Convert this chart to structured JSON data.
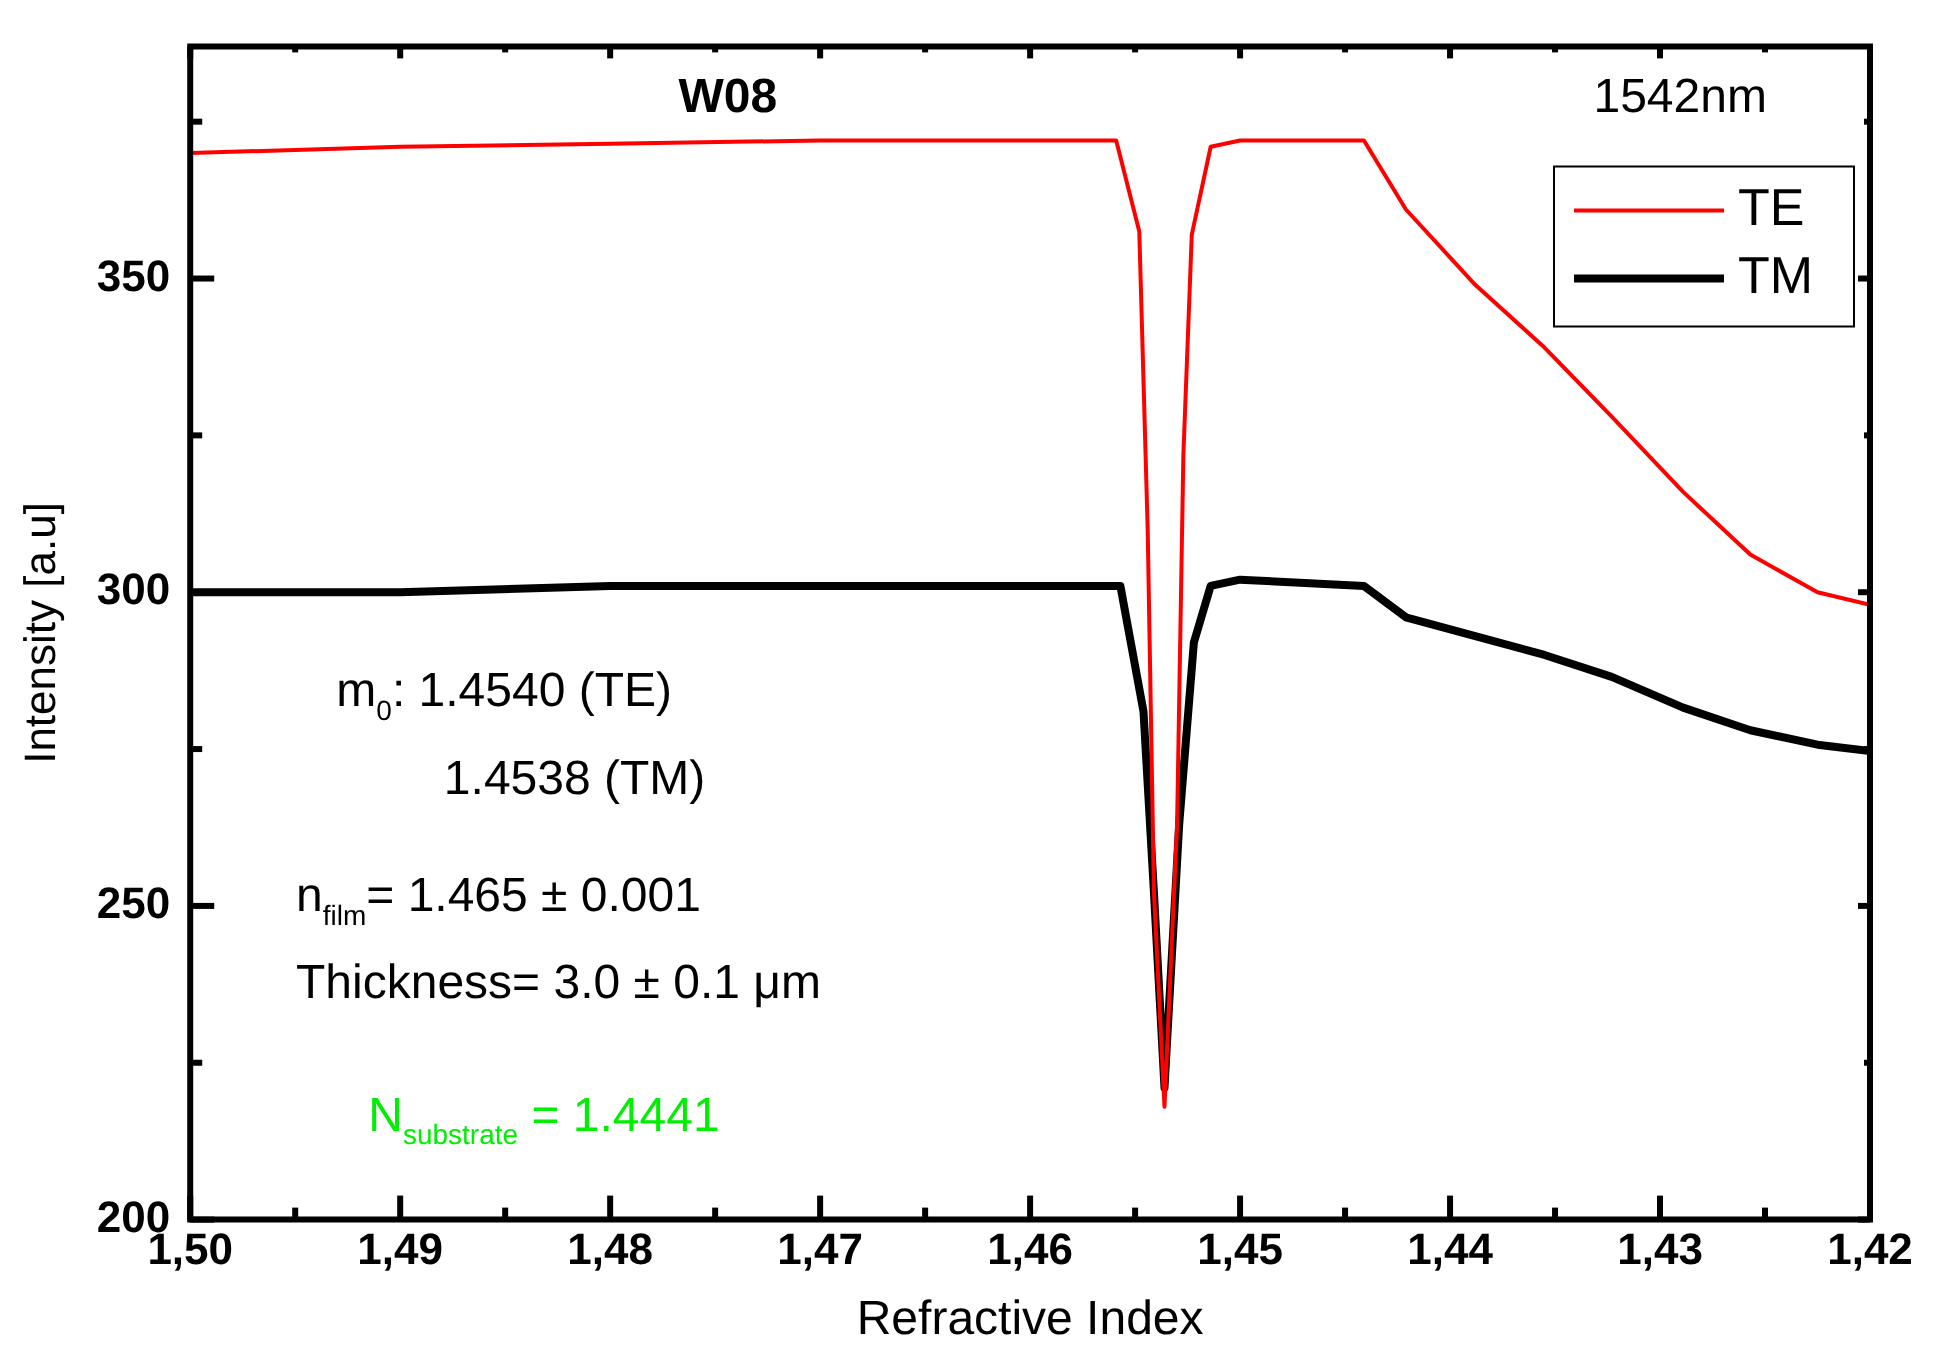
{
  "chart_data": {
    "type": "line",
    "title": "W08",
    "xlabel": "Refractive Index",
    "ylabel": "Intensity [a.u]",
    "annotations": [
      "1542nm",
      "m$_{0}$: 1.4540 (TE)",
      "1.4538 (TM)",
      "n$_{film}$= 1.465 ± 0.001",
      "Thickness= 3.0 ± 0.1 μm",
      "N$_{substrate}$ = 1.4441"
    ],
    "xlim": [
      1.5,
      1.42
    ],
    "ylim": [
      200,
      387
    ],
    "xticks": [
      {
        "value": 1.5,
        "label": "1,50"
      },
      {
        "value": 1.495,
        "label": null
      },
      {
        "value": 1.49,
        "label": "1,49"
      },
      {
        "value": 1.485,
        "label": null
      },
      {
        "value": 1.48,
        "label": "1,48"
      },
      {
        "value": 1.475,
        "label": null
      },
      {
        "value": 1.47,
        "label": "1,47"
      },
      {
        "value": 1.465,
        "label": null
      },
      {
        "value": 1.46,
        "label": "1,46"
      },
      {
        "value": 1.455,
        "label": null
      },
      {
        "value": 1.45,
        "label": "1,45"
      },
      {
        "value": 1.445,
        "label": null
      },
      {
        "value": 1.44,
        "label": "1,44"
      },
      {
        "value": 1.435,
        "label": null
      },
      {
        "value": 1.43,
        "label": "1,43"
      },
      {
        "value": 1.425,
        "label": null
      },
      {
        "value": 1.42,
        "label": "1,42"
      }
    ],
    "yticks": [
      200,
      {
        "value": 225,
        "label": null
      },
      250,
      {
        "value": 275,
        "label": null
      },
      300,
      {
        "value": 325,
        "label": null
      },
      350,
      {
        "value": 375,
        "label": null
      }
    ],
    "grid": false,
    "legend": "top right",
    "marker": "none",
    "line_style": "solid",
    "series": [
      {
        "name": "TE",
        "color": "#ff0000",
        "x": [
          1.5,
          1.495,
          1.49,
          1.48,
          1.47,
          1.46,
          1.4559,
          1.4548,
          1.4544,
          1.4541,
          1.4536,
          1.453,
          1.4527,
          1.4523,
          1.4514,
          1.45,
          1.4441,
          1.4421,
          1.4388,
          1.4355,
          1.4323,
          1.4289,
          1.4257,
          1.4225,
          1.42
        ],
        "values": [
          370,
          370.5,
          371,
          371.5,
          372,
          372,
          372,
          357.5,
          310,
          252,
          218,
          263,
          322,
          357,
          371,
          372,
          372,
          361,
          349,
          339,
          328,
          316,
          306,
          300,
          298
        ]
      },
      {
        "name": "TM",
        "color": "#000000",
        "x": [
          1.5,
          1.49,
          1.48,
          1.47,
          1.46,
          1.4557,
          1.4546,
          1.4541,
          1.4536,
          1.4529,
          1.4522,
          1.4514,
          1.45,
          1.4441,
          1.4421,
          1.4388,
          1.4355,
          1.4323,
          1.4289,
          1.4257,
          1.4225,
          1.42
        ],
        "values": [
          300,
          300,
          301,
          301,
          301,
          301,
          281,
          252,
          221,
          263,
          292,
          301,
          302,
          301,
          296,
          293,
          290,
          286.5,
          281.6,
          278,
          275.7,
          274.7
        ]
      }
    ]
  }
}
